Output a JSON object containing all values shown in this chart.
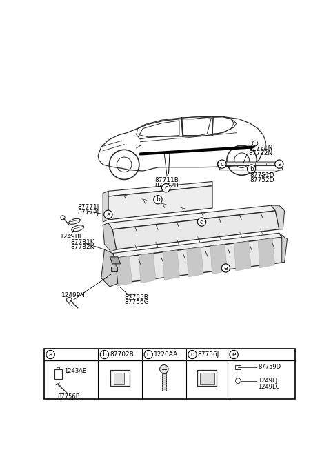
{
  "bg_color": "#ffffff",
  "fig_width": 4.8,
  "fig_height": 6.56,
  "dpi": 100,
  "car_label": "87711B\n87712B",
  "right_panel_label1": "87721N\n87722N",
  "right_panel_label2": "87751D\n87752D",
  "left_labels": {
    "87771J\n87772J": [
      0.065,
      0.545
    ],
    "1249BE": [
      0.032,
      0.508
    ],
    "87781K\n87782K": [
      0.065,
      0.488
    ]
  },
  "bottom_left_label": "1249PN",
  "bottom_screw_label": "87755B\n87756G",
  "table_parts": {
    "a_code1": "1243AE",
    "a_code2": "87756B",
    "b_code": "87702B",
    "c_code": "1220AA",
    "d_code": "87756J",
    "e_code1": "87759D",
    "e_code2": "1249LJ",
    "e_code3": "1249LC"
  }
}
